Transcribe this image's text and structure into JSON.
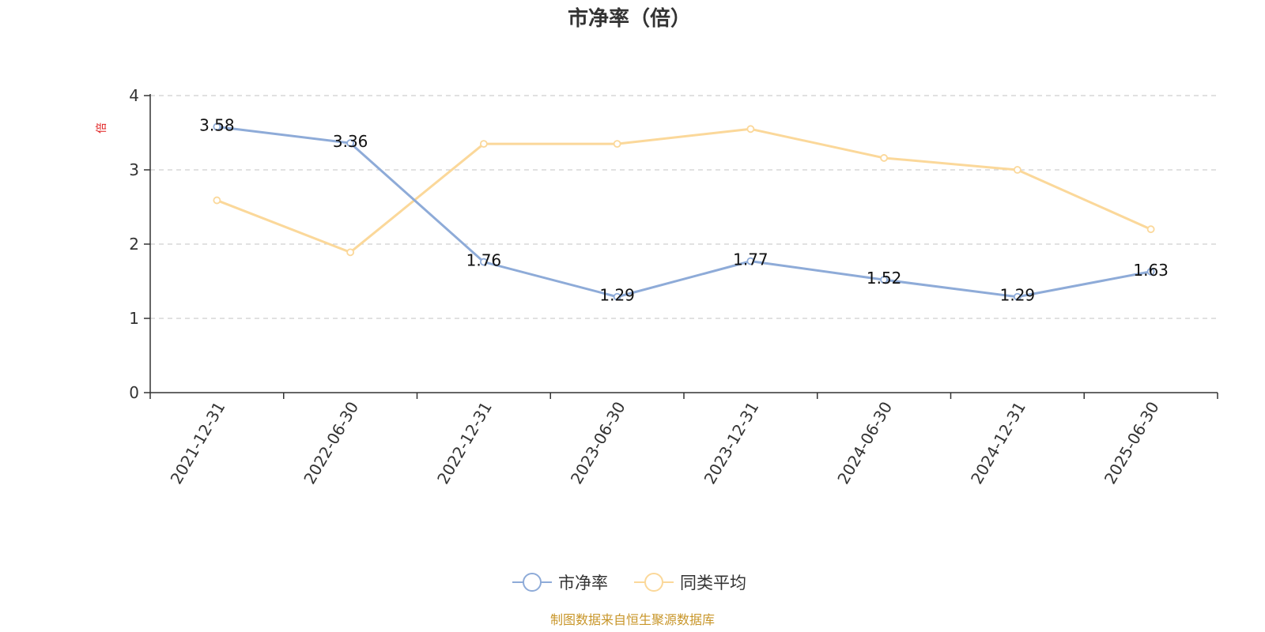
{
  "chart_data": {
    "type": "line",
    "title": "市净率（倍）",
    "ylabel": "倍",
    "xlabel": "",
    "categories": [
      "2021-12-31",
      "2022-06-30",
      "2022-12-31",
      "2023-06-30",
      "2023-12-31",
      "2024-06-30",
      "2024-12-31",
      "2025-06-30"
    ],
    "ylim": [
      0,
      4
    ],
    "yticks": [
      0,
      1,
      2,
      3,
      4
    ],
    "grid": true,
    "legend_position": "bottom",
    "series": [
      {
        "name": "市净率",
        "color": "#8eabd8",
        "values": [
          3.58,
          3.36,
          1.76,
          1.29,
          1.77,
          1.52,
          1.29,
          1.63
        ],
        "labels": [
          "3.58",
          "3.36",
          "1.76",
          "1.29",
          "1.77",
          "1.52",
          "1.29",
          "1.63"
        ]
      },
      {
        "name": "同类平均",
        "color": "#fbd89a",
        "values": [
          2.59,
          1.89,
          3.35,
          3.35,
          3.55,
          3.16,
          3.0,
          2.2
        ]
      }
    ]
  },
  "source_note": "制图数据来自恒生聚源数据库"
}
